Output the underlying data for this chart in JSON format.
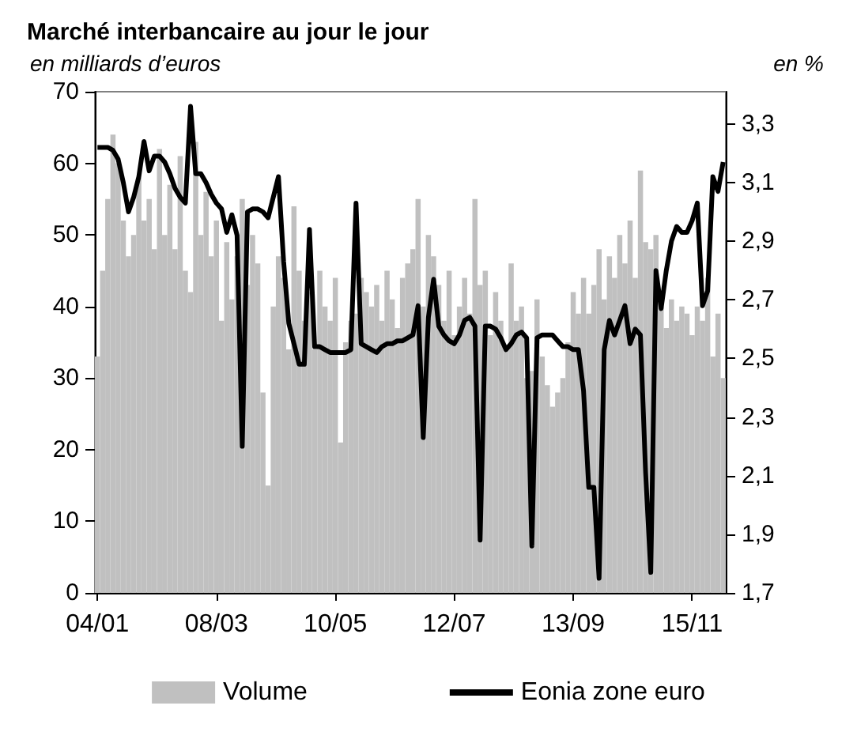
{
  "chart_data": {
    "type": "bar",
    "title": "Marché interbancaire au jour le jour",
    "ylabel": "en milliards d’euros",
    "y2label": "en %",
    "categories": [
      "04/01",
      null,
      null,
      null,
      null,
      null,
      null,
      null,
      null,
      null,
      null,
      null,
      null,
      null,
      null,
      null,
      null,
      null,
      null,
      null,
      null,
      null,
      null,
      "08/03",
      null,
      null,
      null,
      null,
      null,
      null,
      null,
      null,
      null,
      null,
      null,
      null,
      null,
      null,
      null,
      null,
      null,
      null,
      null,
      null,
      null,
      null,
      "10/05",
      null,
      null,
      null,
      null,
      null,
      null,
      null,
      null,
      null,
      null,
      null,
      null,
      null,
      null,
      null,
      null,
      null,
      null,
      null,
      null,
      null,
      null,
      "12/07",
      null,
      null,
      null,
      null,
      null,
      null,
      null,
      null,
      null,
      null,
      null,
      null,
      null,
      null,
      null,
      null,
      null,
      null,
      null,
      null,
      null,
      null,
      "13/09",
      null,
      null,
      null,
      null,
      null,
      null,
      null,
      null,
      null,
      null,
      null,
      null,
      null,
      null,
      null,
      null,
      null,
      null,
      null,
      null,
      null,
      null,
      "15/11",
      null,
      null,
      null,
      null,
      null,
      null
    ],
    "series": [
      {
        "name": "Volume",
        "color": "#c0c0c0",
        "values": [
          33,
          45,
          55,
          64,
          60,
          52,
          47,
          50,
          58,
          52,
          55,
          48,
          62,
          50,
          57,
          48,
          61,
          45,
          42,
          63,
          50,
          56,
          47,
          52,
          38,
          49,
          41,
          47,
          55,
          43,
          50,
          46,
          28,
          15,
          40,
          47,
          44,
          34,
          54,
          45,
          38,
          42,
          34,
          45,
          40,
          38,
          44,
          21,
          35,
          38,
          39,
          44,
          42,
          40,
          43,
          38,
          45,
          41,
          37,
          44,
          46,
          48,
          55,
          40,
          50,
          47,
          43,
          38,
          45,
          36,
          40,
          44,
          39,
          55,
          43,
          45,
          36,
          42,
          38,
          34,
          46,
          38,
          40,
          30,
          31,
          41,
          33,
          29,
          26,
          28,
          30,
          35,
          42,
          39,
          44,
          39,
          43,
          48,
          41,
          47,
          44,
          50,
          46,
          52,
          44,
          59,
          49,
          48,
          50,
          40,
          37,
          41,
          38,
          40,
          39,
          36,
          40,
          38,
          44,
          33,
          39,
          30
        ]
      },
      {
        "name": "Eonia zone euro",
        "type": "line",
        "axis": "y2",
        "color": "#000000",
        "values": [
          3.22,
          3.22,
          3.22,
          3.21,
          3.18,
          3.1,
          3.0,
          3.05,
          3.12,
          3.24,
          3.14,
          3.19,
          3.19,
          3.17,
          3.13,
          3.08,
          3.05,
          3.03,
          3.36,
          3.13,
          3.13,
          3.1,
          3.06,
          3.03,
          3.01,
          2.93,
          2.99,
          2.92,
          2.2,
          3.0,
          3.01,
          3.01,
          3.0,
          2.98,
          3.05,
          3.12,
          2.83,
          2.62,
          2.55,
          2.48,
          2.48,
          2.94,
          2.54,
          2.54,
          2.53,
          2.52,
          2.52,
          2.52,
          2.52,
          2.53,
          3.03,
          2.55,
          2.54,
          2.53,
          2.52,
          2.54,
          2.55,
          2.55,
          2.56,
          2.56,
          2.57,
          2.58,
          2.68,
          2.23,
          2.64,
          2.77,
          2.61,
          2.58,
          2.56,
          2.55,
          2.58,
          2.63,
          2.64,
          2.61,
          1.88,
          2.61,
          2.61,
          2.6,
          2.57,
          2.53,
          2.55,
          2.58,
          2.59,
          2.57,
          1.86,
          2.57,
          2.58,
          2.58,
          2.58,
          2.56,
          2.54,
          2.54,
          2.53,
          2.53,
          2.39,
          2.06,
          2.06,
          1.75,
          2.53,
          2.63,
          2.58,
          2.63,
          2.68,
          2.55,
          2.6,
          2.58,
          2.11,
          1.77,
          2.8,
          2.67,
          2.8,
          2.9,
          2.95,
          2.93,
          2.93,
          2.97,
          3.03,
          2.68,
          2.73,
          3.12,
          3.07,
          3.17
        ]
      }
    ],
    "ylim": [
      0,
      70
    ],
    "yticks": [
      0,
      10,
      20,
      30,
      40,
      50,
      60,
      70
    ],
    "y2lim": [
      1.7,
      3.41
    ],
    "y2ticks": [
      {
        "value": 1.7,
        "label": "1,7"
      },
      {
        "value": 1.9,
        "label": "1,9"
      },
      {
        "value": 2.1,
        "label": "2,1"
      },
      {
        "value": 2.3,
        "label": "2,3"
      },
      {
        "value": 2.5,
        "label": "2,5"
      },
      {
        "value": 2.7,
        "label": "2,7"
      },
      {
        "value": 2.9,
        "label": "2,9"
      },
      {
        "value": 3.1,
        "label": "3,1"
      },
      {
        "value": 3.3,
        "label": "3,3"
      }
    ],
    "grid": false,
    "legend": "bottom",
    "marker": "none",
    "line_style": "solid"
  }
}
